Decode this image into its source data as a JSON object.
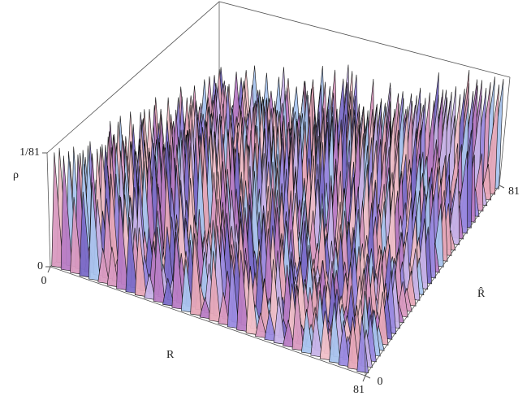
{
  "chart_data": {
    "type": "surface3d",
    "x_label": "R",
    "y_label": "R̂",
    "z_label": "ρ",
    "xlim": [
      0,
      81
    ],
    "xticks": [
      0,
      81
    ],
    "ylim": [
      0,
      81
    ],
    "yticks": [
      0,
      81
    ],
    "zlim": [
      0,
      0.012345679
    ],
    "zticks": [
      0,
      {
        "value": 0.012345679,
        "label": "1/81"
      }
    ]
  }
}
